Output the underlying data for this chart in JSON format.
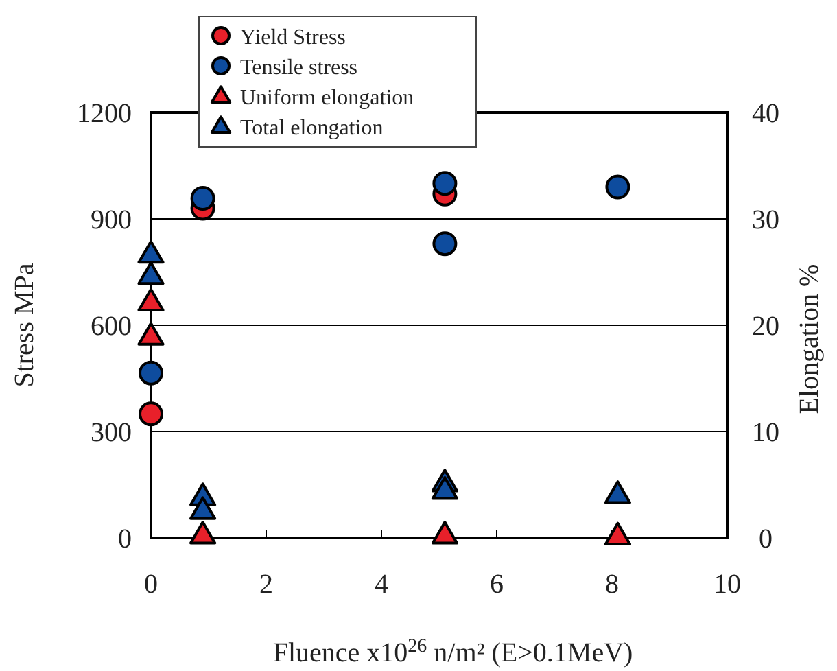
{
  "chart_data": {
    "type": "scatter",
    "xlabel": "Fluence x10$^{26}$ n/m² (E>0.1MeV)",
    "ylabel": "Stress MPa",
    "y2label": "Elongation %",
    "xlim": [
      0,
      10
    ],
    "xticks": [
      0,
      2,
      4,
      6,
      8,
      10
    ],
    "ylim": [
      0,
      1200
    ],
    "yticks": [
      0,
      300,
      600,
      900,
      1200
    ],
    "y2lim": [
      0,
      40
    ],
    "y2ticks": [
      0,
      10,
      20,
      30,
      40
    ],
    "grid": "y",
    "legend": "top left",
    "series": [
      {
        "name": "Yield Stress",
        "color": "#e8202a",
        "marker": "circle",
        "x": [
          0,
          0.9,
          5.1
        ],
        "values": [
          350,
          930,
          970
        ]
      },
      {
        "name": "Tensile stress",
        "color": "#0e4c9e",
        "marker": "circle",
        "x": [
          0,
          0.9,
          5.1,
          5.1,
          8.1
        ],
        "values": [
          465,
          958,
          1000,
          830,
          990
        ]
      },
      {
        "name": "Uniform elongation",
        "color": "#e8202a",
        "marker": "triangle",
        "axis": "y2",
        "x": [
          0,
          0,
          0.9,
          5.1,
          8.1
        ],
        "values": [
          19,
          22.2,
          0.3,
          0.3,
          0.2
        ]
      },
      {
        "name": "Total elongation",
        "color": "#0e4c9e",
        "marker": "triangle",
        "axis": "y2",
        "x": [
          0,
          0,
          0.9,
          0.9,
          5.1,
          5.1,
          8.1
        ],
        "values": [
          24.7,
          26.7,
          3.9,
          2.6,
          5.2,
          4.5,
          4.1
        ]
      }
    ]
  }
}
